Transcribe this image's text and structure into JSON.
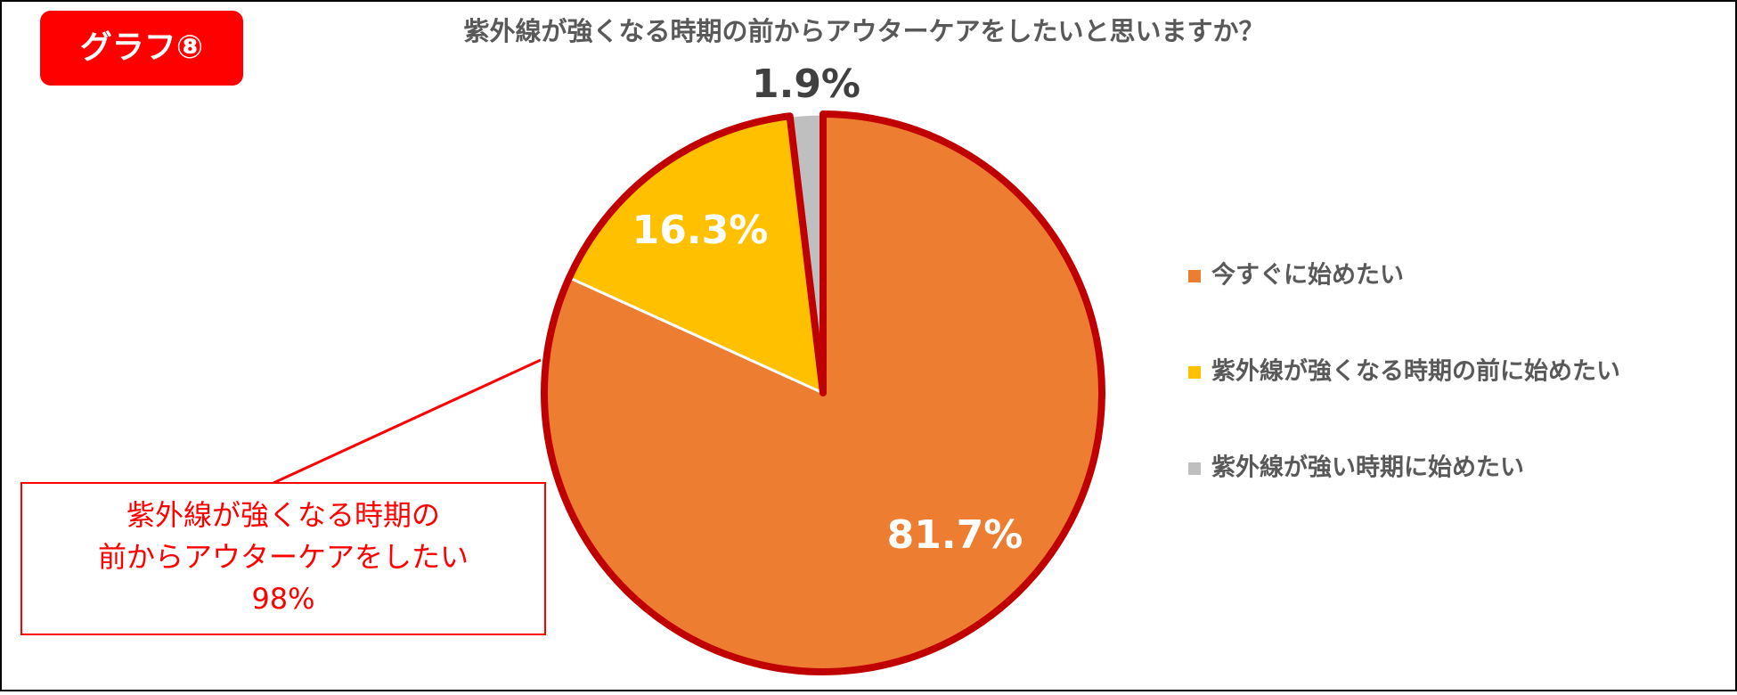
{
  "badge": "グラフ⑧",
  "chart_data": {
    "type": "pie",
    "title": "紫外線が強くなる時期の前からアウターケアをしたいと思いますか？",
    "categories": [
      "今すぐに始めたい",
      "紫外線が強くなる時期の前に始めたい",
      "紫外線が強い時期に始めたい"
    ],
    "values": [
      81.7,
      16.3,
      1.9
    ],
    "value_labels": [
      "81.7%",
      "16.3%",
      "1.9%"
    ],
    "colors": [
      "#ED7D31",
      "#FFC000",
      "#BFBFBF"
    ],
    "legend": "right",
    "annotation": [
      "紫外線が強くなる時期の",
      "前からアウターケアをしたい",
      "98%"
    ]
  }
}
